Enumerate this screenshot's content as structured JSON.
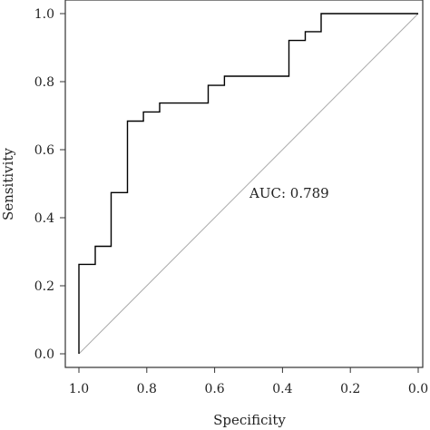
{
  "chart_data": {
    "type": "line",
    "xlabel": "Specificity",
    "ylabel": "Sensitivity",
    "x_reversed": true,
    "xlim": [
      0.0,
      1.0
    ],
    "ylim": [
      0.0,
      1.0
    ],
    "x_ticks": [
      1.0,
      0.8,
      0.6,
      0.4,
      0.2,
      0.0
    ],
    "x_tick_labels": [
      "1.0",
      "0.8",
      "0.6",
      "0.4",
      "0.2",
      "0.0"
    ],
    "y_ticks": [
      0.0,
      0.2,
      0.4,
      0.6,
      0.8,
      1.0
    ],
    "y_tick_labels": [
      "0.0",
      "0.2",
      "0.4",
      "0.6",
      "0.8",
      "1.0"
    ],
    "grid": false,
    "annotation": "AUC: 0.789",
    "series": [
      {
        "type": "step",
        "color": "#000000",
        "points": [
          {
            "specificity": 1.0,
            "sensitivity": 0.0
          },
          {
            "specificity": 1.0,
            "sensitivity": 0.263
          },
          {
            "specificity": 0.952,
            "sensitivity": 0.263
          },
          {
            "specificity": 0.952,
            "sensitivity": 0.316
          },
          {
            "specificity": 0.905,
            "sensitivity": 0.316
          },
          {
            "specificity": 0.905,
            "sensitivity": 0.474
          },
          {
            "specificity": 0.857,
            "sensitivity": 0.474
          },
          {
            "specificity": 0.857,
            "sensitivity": 0.684
          },
          {
            "specificity": 0.81,
            "sensitivity": 0.684
          },
          {
            "specificity": 0.81,
            "sensitivity": 0.711
          },
          {
            "specificity": 0.762,
            "sensitivity": 0.711
          },
          {
            "specificity": 0.762,
            "sensitivity": 0.737
          },
          {
            "specificity": 0.619,
            "sensitivity": 0.737
          },
          {
            "specificity": 0.619,
            "sensitivity": 0.789
          },
          {
            "specificity": 0.571,
            "sensitivity": 0.789
          },
          {
            "specificity": 0.571,
            "sensitivity": 0.816
          },
          {
            "specificity": 0.381,
            "sensitivity": 0.816
          },
          {
            "specificity": 0.381,
            "sensitivity": 0.921
          },
          {
            "specificity": 0.333,
            "sensitivity": 0.921
          },
          {
            "specificity": 0.333,
            "sensitivity": 0.947
          },
          {
            "specificity": 0.286,
            "sensitivity": 0.947
          },
          {
            "specificity": 0.286,
            "sensitivity": 1.0
          },
          {
            "specificity": 0.0,
            "sensitivity": 1.0
          }
        ]
      },
      {
        "type": "reference-diagonal",
        "color": "#aaaaaa",
        "points": [
          {
            "specificity": 1.0,
            "sensitivity": 0.0
          },
          {
            "specificity": 0.0,
            "sensitivity": 1.0
          }
        ]
      }
    ]
  }
}
